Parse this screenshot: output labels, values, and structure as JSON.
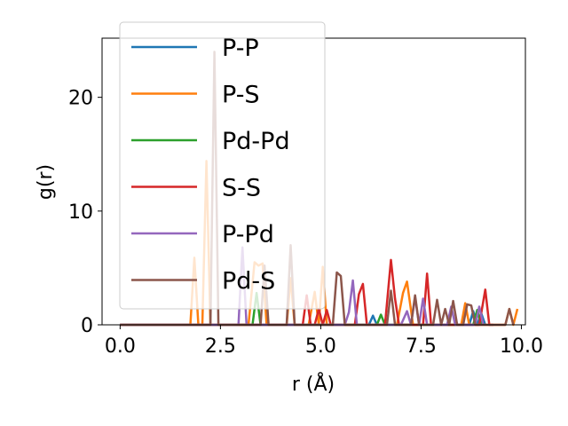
{
  "chart_data": {
    "type": "line",
    "xlabel": "r (Å)",
    "ylabel": "g(r)",
    "xlim": [
      -0.45,
      10.1
    ],
    "ylim": [
      0,
      25.2
    ],
    "x_ticks": [
      0.0,
      2.5,
      5.0,
      7.5,
      10.0
    ],
    "x_tick_labels": [
      "0.0",
      "2.5",
      "5.0",
      "7.5",
      "10.0"
    ],
    "y_ticks": [
      0,
      10,
      20
    ],
    "y_tick_labels": [
      "0",
      "10",
      "20"
    ],
    "grid": false,
    "legend": {
      "position": "upper-left"
    },
    "series": [
      {
        "name": "P-P",
        "color": "#1f77b4",
        "x": [
          0.0,
          6.1,
          6.2,
          6.3,
          6.4,
          6.5,
          8.7,
          8.8,
          8.9,
          9.0,
          9.1
        ],
        "values": [
          0,
          0,
          0,
          0.8,
          0,
          0,
          0,
          1.2,
          0,
          1.0,
          0
        ]
      },
      {
        "name": "P-S",
        "color": "#ff7f0e",
        "x": [
          0.0,
          1.75,
          1.85,
          1.95,
          2.05,
          2.15,
          2.25,
          2.35,
          3.2,
          3.35,
          3.45,
          3.55,
          3.65,
          4.15,
          4.25,
          4.35,
          4.7,
          4.85,
          4.95,
          5.05,
          5.15,
          6.9,
          7.05,
          7.15,
          7.3,
          8.5,
          8.6,
          8.7,
          9.6,
          9.7,
          9.8,
          9.9
        ],
        "values": [
          0,
          0,
          5.9,
          0,
          0,
          14.4,
          0,
          0,
          0,
          5.5,
          5.2,
          5.4,
          0,
          0,
          4.1,
          0,
          0,
          2.9,
          0,
          5.1,
          0,
          0,
          2.8,
          3.8,
          0,
          0,
          1.9,
          0,
          0,
          1.4,
          0,
          1.4
        ]
      },
      {
        "name": "Pd-Pd",
        "color": "#2ca02c",
        "x": [
          0.0,
          3.3,
          3.4,
          3.5,
          6.4,
          6.5,
          6.6,
          8.8,
          8.9,
          9.0
        ],
        "values": [
          0,
          0,
          2.8,
          0,
          0,
          0.9,
          0,
          0,
          1.3,
          0
        ]
      },
      {
        "name": "S-S",
        "color": "#d62728",
        "x": [
          0.0,
          4.55,
          4.65,
          4.75,
          4.85,
          4.95,
          5.05,
          5.15,
          5.25,
          5.85,
          5.95,
          6.05,
          6.15,
          6.6,
          6.75,
          6.85,
          6.95,
          7.55,
          7.65,
          7.75,
          8.95,
          9.1,
          9.2,
          9.3
        ],
        "values": [
          0,
          0,
          2.6,
          0,
          0,
          1.4,
          0,
          1.3,
          0,
          0,
          2.7,
          3.6,
          0,
          0,
          5.7,
          2.3,
          0,
          0,
          4.5,
          0,
          0,
          3.1,
          0,
          0
        ]
      },
      {
        "name": "P-Pd",
        "color": "#9467bd",
        "x": [
          0.0,
          2.95,
          3.05,
          3.15,
          3.25,
          5.6,
          5.7,
          5.8,
          5.9,
          6.0,
          7.0,
          7.15,
          7.25,
          7.35,
          7.45,
          7.55,
          7.65,
          7.75,
          8.15,
          8.25,
          8.35,
          8.85,
          8.95,
          9.05
        ],
        "values": [
          0,
          0,
          6.8,
          0,
          0,
          0,
          1.1,
          3.9,
          0,
          0,
          0,
          1.2,
          0,
          2.4,
          0,
          2.3,
          0,
          0,
          0,
          1.6,
          0,
          0,
          1.6,
          0
        ]
      },
      {
        "name": "Pd-S",
        "color": "#8c564b",
        "x": [
          0.0,
          2.25,
          2.35,
          2.45,
          3.5,
          3.6,
          3.7,
          4.15,
          4.25,
          4.35,
          5.3,
          5.4,
          5.5,
          5.6,
          6.65,
          6.75,
          6.85,
          7.25,
          7.35,
          7.45,
          7.8,
          7.9,
          8.0,
          8.1,
          8.2,
          8.3,
          8.4,
          8.55,
          8.65,
          8.75,
          8.85,
          9.6,
          9.7,
          9.8
        ],
        "values": [
          0,
          0,
          24.0,
          0,
          0,
          5.2,
          0,
          0,
          7.0,
          0,
          0,
          4.6,
          4.3,
          0,
          0,
          3.0,
          0,
          0,
          2.6,
          0,
          0,
          2.2,
          0,
          1.4,
          0,
          2.1,
          0,
          0,
          1.8,
          1.7,
          0,
          0,
          1.4,
          0
        ]
      }
    ]
  }
}
